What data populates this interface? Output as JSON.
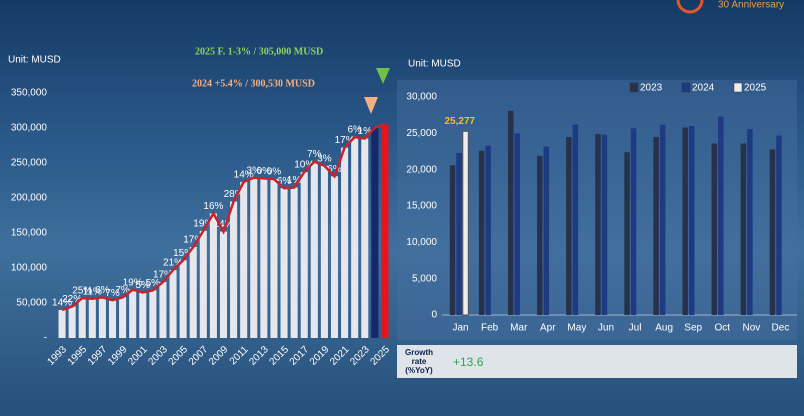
{
  "header": {
    "badge": "30 Anniversary"
  },
  "chart_data": [
    {
      "type": "bar_line",
      "unit_label": "Unit: MUSD",
      "annotations": [
        {
          "text": "2025 F. 1-3% / 305,000 MUSD",
          "color": "#8fd45a"
        },
        {
          "text": "2024  +5.4% / 300,530 MUSD",
          "color": "#f4b183"
        }
      ],
      "categories": [
        "1993",
        null,
        "1995",
        null,
        "1997",
        null,
        "1999",
        null,
        "2001",
        null,
        "2003",
        null,
        "2005",
        null,
        "2007",
        null,
        "2009",
        null,
        "2011",
        null,
        "2013",
        null,
        "2015",
        null,
        "2017",
        null,
        "2019",
        null,
        "2021",
        null,
        "2023",
        null,
        "2025"
      ],
      "values": [
        40000,
        45000,
        57000,
        56000,
        58000,
        54000,
        58000,
        69000,
        65000,
        68000,
        80000,
        97000,
        111000,
        130000,
        153000,
        178000,
        152000,
        195000,
        223000,
        229000,
        228000,
        227000,
        214000,
        215000,
        237000,
        252000,
        246000,
        231000,
        272000,
        287000,
        285000,
        300530,
        305000
      ],
      "growth_labels": [
        "14%",
        "22%",
        "25%",
        "11%",
        "6%",
        "7%",
        "7%",
        "19%",
        "5%",
        "5%",
        "17%",
        "21%",
        "15%",
        "17%",
        "19%",
        "16%",
        "14%",
        "28%",
        "14%",
        "3%",
        "0%",
        "0%",
        "6%",
        "1%",
        "10%",
        "7%",
        "3%",
        "6%",
        "17%",
        "6%",
        "1%",
        null,
        null
      ],
      "colors": [
        "#e6e7ec",
        "#e6e7ec",
        "#e6e7ec",
        "#e6e7ec",
        "#e6e7ec",
        "#e6e7ec",
        "#e6e7ec",
        "#e6e7ec",
        "#e6e7ec",
        "#e6e7ec",
        "#e6e7ec",
        "#e6e7ec",
        "#e6e7ec",
        "#e6e7ec",
        "#e6e7ec",
        "#e6e7ec",
        "#e6e7ec",
        "#e6e7ec",
        "#e6e7ec",
        "#e6e7ec",
        "#e6e7ec",
        "#e6e7ec",
        "#e6e7ec",
        "#e6e7ec",
        "#e6e7ec",
        "#e6e7ec",
        "#e6e7ec",
        "#e6e7ec",
        "#e6e7ec",
        "#e6e7ec",
        "#e6e7ec",
        "#16286b",
        "#e8141c"
      ],
      "line_color": "#c8232c",
      "ylim": [
        0,
        350000
      ],
      "yticks": [
        {
          "value": 0,
          "label": "-"
        },
        {
          "value": 50000,
          "label": "50,000"
        },
        {
          "value": 100000,
          "label": "100,000"
        },
        {
          "value": 150000,
          "label": "150,000"
        },
        {
          "value": 200000,
          "label": "200,000"
        },
        {
          "value": 250000,
          "label": "250,000"
        },
        {
          "value": 300000,
          "label": "300,000"
        },
        {
          "value": 350000,
          "label": "350,000"
        }
      ]
    },
    {
      "type": "grouped_bar",
      "unit_label": "Unit: MUSD",
      "categories": [
        "Jan",
        "Feb",
        "Mar",
        "Apr",
        "May",
        "Jun",
        "Jul",
        "Aug",
        "Sep",
        "Oct",
        "Nov",
        "Dec"
      ],
      "series": [
        {
          "name": "2023",
          "color": "#27324a",
          "values": [
            20600,
            22600,
            28100,
            21900,
            24500,
            24900,
            22400,
            24500,
            25800,
            23600,
            23600,
            22800
          ]
        },
        {
          "name": "2024",
          "color": "#1d3a82",
          "values": [
            22300,
            23300,
            25000,
            23200,
            26200,
            24800,
            25700,
            26200,
            26000,
            27300,
            25600,
            24700
          ]
        },
        {
          "name": "2025",
          "color": "#eeeeee",
          "values": [
            25277,
            null,
            null,
            null,
            null,
            null,
            null,
            null,
            null,
            null,
            null,
            null
          ],
          "value_labels": [
            "25,277",
            null,
            null,
            null,
            null,
            null,
            null,
            null,
            null,
            null,
            null,
            null
          ]
        }
      ],
      "legend": "top-right",
      "ylim": [
        0,
        30000
      ],
      "yticks": [
        {
          "value": 0,
          "label": "0"
        },
        {
          "value": 5000,
          "label": "5,000"
        },
        {
          "value": 10000,
          "label": "10,000"
        },
        {
          "value": 15000,
          "label": "15,000"
        },
        {
          "value": 20000,
          "label": "20,000"
        },
        {
          "value": 25000,
          "label": "25,000"
        },
        {
          "value": 30000,
          "label": "30,000"
        }
      ]
    }
  ],
  "table": {
    "rows": [
      [
        "Growth rate (%YoY)",
        "+13.6"
      ]
    ]
  }
}
